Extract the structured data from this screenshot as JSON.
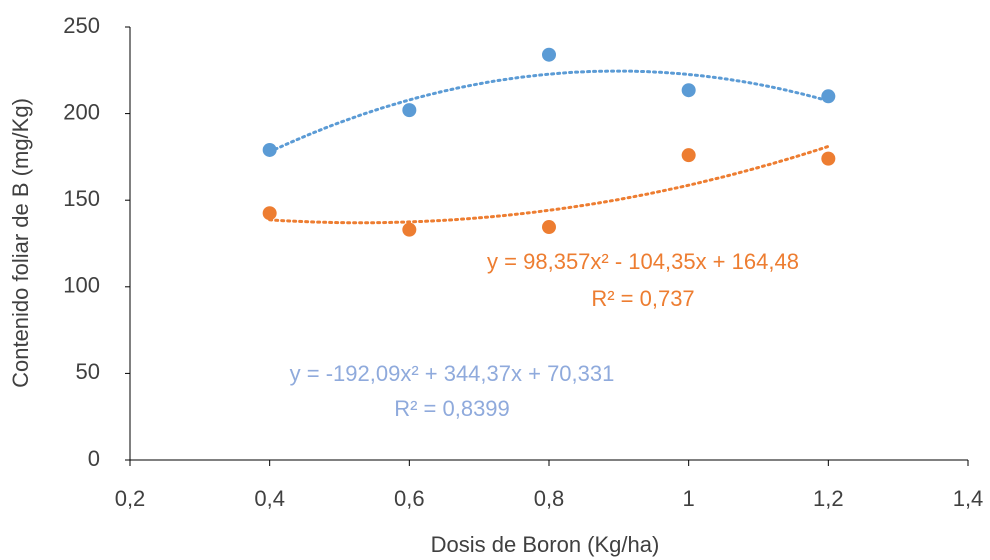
{
  "chart_data": {
    "type": "scatter",
    "x_label": "Dosis de Boron (Kg/ha)",
    "y_label": "Contenido foliar de B (mg/Kg)",
    "xlim": [
      0.2,
      1.4
    ],
    "xticks": [
      {
        "value": 0.2,
        "label": "0,2"
      },
      {
        "value": 0.4,
        "label": "0,4"
      },
      {
        "value": 0.6,
        "label": "0,6"
      },
      {
        "value": 0.8,
        "label": "0,8"
      },
      {
        "value": 1,
        "label": "1"
      },
      {
        "value": 1.2,
        "label": "1,2"
      },
      {
        "value": 1.4,
        "label": "1,4"
      }
    ],
    "ylim": [
      0,
      250
    ],
    "yticks": [
      0,
      50,
      100,
      150,
      200,
      250
    ],
    "grid": false,
    "trendline": "polynomial-2",
    "series": [
      {
        "color": "#5b9bd5",
        "x": [
          0.4,
          0.6,
          0.8,
          1.0,
          1.2
        ],
        "values": [
          179,
          202,
          234,
          213.5,
          210
        ],
        "trendline_equation": "y = -192,09x² + 344,37x + 70,331",
        "trendline_r2": "R² = 0,8399",
        "label_color": "#8faadc"
      },
      {
        "color": "#ed7d31",
        "x": [
          0.4,
          0.6,
          0.8,
          1.0,
          1.2
        ],
        "values": [
          142.5,
          133,
          134.5,
          176,
          174
        ],
        "trendline_equation": "y = 98,357x² - 104,35x + 164,48",
        "trendline_r2": "R² = 0,737",
        "label_color": "#ed7d31"
      }
    ]
  }
}
